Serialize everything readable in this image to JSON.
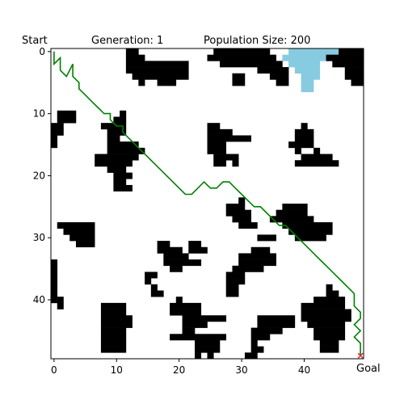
{
  "chart_data": {
    "type": "heatmap",
    "title_start": "Start",
    "title_generation": "Generation: 1",
    "title_population": "Population Size: 200",
    "goal_label": "Goal",
    "grid_size": 50,
    "xlim": [
      0,
      49
    ],
    "ylim": [
      0,
      49
    ],
    "x_ticks": [
      0,
      10,
      20,
      30,
      40
    ],
    "y_ticks": [
      0,
      10,
      20,
      30,
      40
    ],
    "colors": {
      "wall": "#000000",
      "water": "#87cbe0",
      "free": "#ffffff",
      "path": "#008000",
      "goal": "#d62728"
    },
    "walls": [
      [
        0,
        12,
        14
      ],
      [
        0,
        26,
        35
      ],
      [
        0,
        46,
        50
      ],
      [
        1,
        12,
        15
      ],
      [
        1,
        25,
        36
      ],
      [
        1,
        44,
        50
      ],
      [
        2,
        12,
        22
      ],
      [
        2,
        27,
        37
      ],
      [
        2,
        45,
        50
      ],
      [
        3,
        12,
        22
      ],
      [
        3,
        33,
        38
      ],
      [
        3,
        47,
        50
      ],
      [
        4,
        13,
        22
      ],
      [
        4,
        29,
        31
      ],
      [
        4,
        35,
        38
      ],
      [
        4,
        47,
        50
      ],
      [
        5,
        14,
        15
      ],
      [
        5,
        17,
        20
      ],
      [
        5,
        29,
        31
      ],
      [
        5,
        36,
        38
      ],
      [
        5,
        48,
        50
      ],
      [
        10,
        1,
        4
      ],
      [
        10,
        11,
        12
      ],
      [
        11,
        1,
        4
      ],
      [
        11,
        10,
        12
      ],
      [
        12,
        0,
        2
      ],
      [
        12,
        8,
        12
      ],
      [
        12,
        25,
        27
      ],
      [
        12,
        40,
        41
      ],
      [
        13,
        0,
        2
      ],
      [
        13,
        9,
        12
      ],
      [
        13,
        25,
        29
      ],
      [
        13,
        39,
        42
      ],
      [
        14,
        0,
        1
      ],
      [
        14,
        9,
        11
      ],
      [
        14,
        25,
        32
      ],
      [
        14,
        39,
        42
      ],
      [
        15,
        0,
        1
      ],
      [
        15,
        9,
        14
      ],
      [
        15,
        25,
        28
      ],
      [
        15,
        38,
        42
      ],
      [
        16,
        9,
        15
      ],
      [
        16,
        25,
        28
      ],
      [
        16,
        39,
        40
      ],
      [
        16,
        42,
        43
      ],
      [
        17,
        7,
        14
      ],
      [
        17,
        26,
        30
      ],
      [
        17,
        40,
        45
      ],
      [
        18,
        7,
        13
      ],
      [
        18,
        26,
        28
      ],
      [
        18,
        39,
        46
      ],
      [
        19,
        9,
        12
      ],
      [
        18,
        29,
        30
      ],
      [
        20,
        10,
        13
      ],
      [
        21,
        10,
        12
      ],
      [
        22,
        10,
        13
      ],
      [
        24,
        30,
        31
      ],
      [
        25,
        28,
        31
      ],
      [
        25,
        37,
        41
      ],
      [
        26,
        28,
        32
      ],
      [
        26,
        36,
        41
      ],
      [
        27,
        29,
        32
      ],
      [
        27,
        35,
        42
      ],
      [
        28,
        1,
        7
      ],
      [
        28,
        30,
        33
      ],
      [
        28,
        37,
        45
      ],
      [
        29,
        2,
        7
      ],
      [
        29,
        38,
        45
      ],
      [
        30,
        3,
        7
      ],
      [
        30,
        33,
        36
      ],
      [
        30,
        39,
        44
      ],
      [
        31,
        4,
        7
      ],
      [
        31,
        17,
        19
      ],
      [
        31,
        22,
        24
      ],
      [
        32,
        17,
        21
      ],
      [
        32,
        22,
        25
      ],
      [
        32,
        32,
        35
      ],
      [
        33,
        18,
        22
      ],
      [
        33,
        30,
        36
      ],
      [
        34,
        0,
        1
      ],
      [
        34,
        18,
        24
      ],
      [
        34,
        30,
        36
      ],
      [
        35,
        0,
        1
      ],
      [
        35,
        19,
        21
      ],
      [
        35,
        29,
        34
      ],
      [
        36,
        0,
        1
      ],
      [
        36,
        15,
        17
      ],
      [
        36,
        28,
        31
      ],
      [
        37,
        0,
        1
      ],
      [
        37,
        15,
        16
      ],
      [
        37,
        28,
        31
      ],
      [
        38,
        0,
        1
      ],
      [
        38,
        16,
        17
      ],
      [
        38,
        28,
        30
      ],
      [
        38,
        44,
        45
      ],
      [
        39,
        0,
        1
      ],
      [
        39,
        16,
        18
      ],
      [
        39,
        28,
        30
      ],
      [
        39,
        44,
        46
      ],
      [
        40,
        0,
        2
      ],
      [
        40,
        20,
        21
      ],
      [
        40,
        42,
        47
      ],
      [
        41,
        1,
        2
      ],
      [
        41,
        8,
        12
      ],
      [
        41,
        19,
        24
      ],
      [
        41,
        40,
        47
      ],
      [
        42,
        8,
        12
      ],
      [
        42,
        19,
        24
      ],
      [
        42,
        40,
        48
      ],
      [
        43,
        8,
        13
      ],
      [
        43,
        21,
        28
      ],
      [
        43,
        33,
        39
      ],
      [
        43,
        40,
        48
      ],
      [
        44,
        8,
        13
      ],
      [
        44,
        21,
        25
      ],
      [
        44,
        33,
        39
      ],
      [
        44,
        41,
        47
      ],
      [
        45,
        8,
        12
      ],
      [
        45,
        21,
        23
      ],
      [
        45,
        32,
        37
      ],
      [
        45,
        42,
        47
      ],
      [
        46,
        8,
        12
      ],
      [
        46,
        19,
        28
      ],
      [
        46,
        32,
        35
      ],
      [
        46,
        42,
        47
      ],
      [
        47,
        8,
        12
      ],
      [
        47,
        23,
        27
      ],
      [
        47,
        32,
        33
      ],
      [
        47,
        43,
        46
      ],
      [
        48,
        8,
        12
      ],
      [
        48,
        23,
        27
      ],
      [
        48,
        32,
        34
      ],
      [
        48,
        43,
        46
      ],
      [
        49,
        25,
        26
      ],
      [
        49,
        23,
        24
      ],
      [
        49,
        31,
        33
      ]
    ],
    "water": [
      [
        0,
        38,
        46
      ],
      [
        1,
        37,
        44
      ],
      [
        2,
        38,
        43
      ],
      [
        3,
        39,
        43
      ],
      [
        4,
        40,
        43
      ],
      [
        5,
        40,
        42
      ],
      [
        6,
        40,
        42
      ]
    ],
    "path": [
      [
        0,
        0
      ],
      [
        2,
        0
      ],
      [
        1,
        1
      ],
      [
        3,
        1
      ],
      [
        4,
        2
      ],
      [
        2,
        3
      ],
      [
        4,
        3
      ],
      [
        5,
        4
      ],
      [
        6,
        4
      ],
      [
        7,
        5
      ],
      [
        8,
        6
      ],
      [
        9,
        7
      ],
      [
        10,
        8
      ],
      [
        10,
        9
      ],
      [
        11,
        9
      ],
      [
        12,
        10
      ],
      [
        12,
        11
      ],
      [
        13,
        11
      ],
      [
        14,
        12
      ],
      [
        15,
        13
      ],
      [
        16,
        14
      ],
      [
        17,
        15
      ],
      [
        18,
        16
      ],
      [
        19,
        17
      ],
      [
        20,
        18
      ],
      [
        21,
        19
      ],
      [
        22,
        20
      ],
      [
        23,
        21
      ],
      [
        23,
        22
      ],
      [
        22,
        23
      ],
      [
        21,
        24
      ],
      [
        22,
        25
      ],
      [
        22,
        26
      ],
      [
        21,
        27
      ],
      [
        21,
        28
      ],
      [
        22,
        29
      ],
      [
        23,
        30
      ],
      [
        24,
        31
      ],
      [
        25,
        32
      ],
      [
        25,
        33
      ],
      [
        26,
        34
      ],
      [
        27,
        35
      ],
      [
        28,
        36
      ],
      [
        28,
        37
      ],
      [
        29,
        38
      ],
      [
        30,
        39
      ],
      [
        31,
        40
      ],
      [
        32,
        41
      ],
      [
        33,
        42
      ],
      [
        34,
        43
      ],
      [
        35,
        44
      ],
      [
        36,
        45
      ],
      [
        37,
        46
      ],
      [
        38,
        47
      ],
      [
        39,
        48
      ],
      [
        40,
        48
      ],
      [
        41,
        48
      ],
      [
        42,
        49
      ],
      [
        43,
        49
      ],
      [
        44,
        48
      ],
      [
        45,
        49
      ],
      [
        46,
        48
      ],
      [
        47,
        49
      ],
      [
        48,
        49
      ],
      [
        49,
        49
      ]
    ]
  }
}
